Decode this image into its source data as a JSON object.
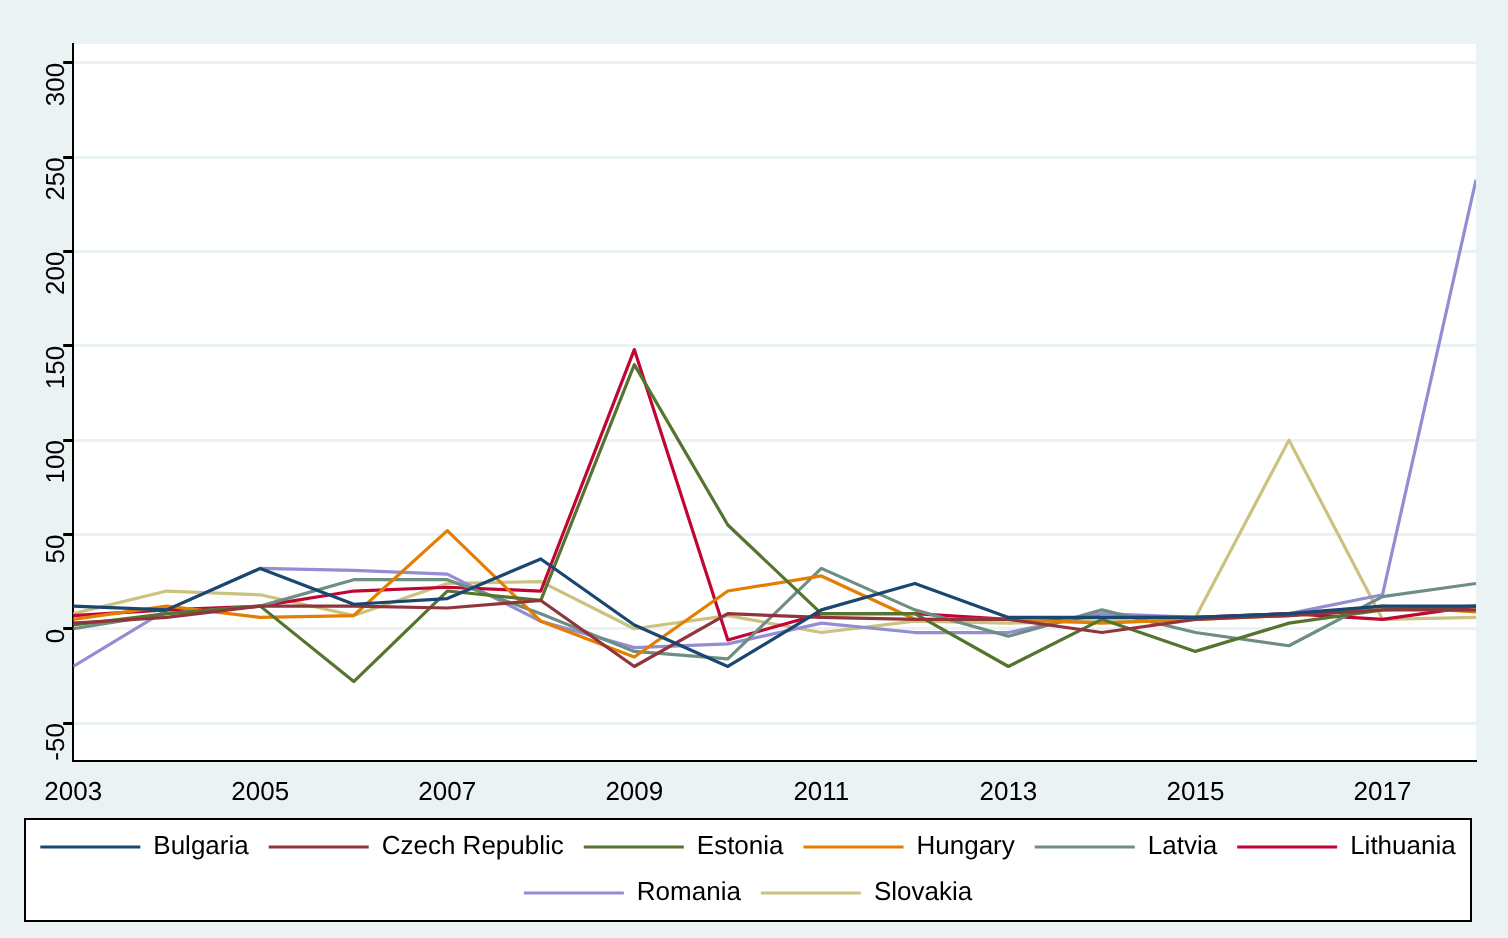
{
  "chart_data": {
    "type": "line",
    "x": [
      2003,
      2004,
      2005,
      2006,
      2007,
      2008,
      2009,
      2010,
      2011,
      2012,
      2013,
      2014,
      2015,
      2016,
      2017,
      2018
    ],
    "xlim": [
      2003,
      2018
    ],
    "xticks": [
      2003,
      2005,
      2007,
      2009,
      2011,
      2013,
      2015,
      2017
    ],
    "ylim": [
      -70,
      310
    ],
    "yticks": [
      -50,
      0,
      50,
      100,
      150,
      200,
      250,
      300
    ],
    "grid": "y",
    "legend": "bottom",
    "marker": "none",
    "line_style": "solid",
    "series": [
      {
        "name": "Bulgaria",
        "color": "#1a476f",
        "values": [
          12,
          10,
          32,
          13,
          16,
          37,
          2,
          -20,
          10,
          24,
          6,
          6,
          6,
          8,
          12,
          12
        ]
      },
      {
        "name": "Czech Republic",
        "color": "#90353b",
        "values": [
          3,
          6,
          12,
          12,
          11,
          15,
          -20,
          8,
          6,
          5,
          5,
          -2,
          5,
          7,
          10,
          10
        ]
      },
      {
        "name": "Estonia",
        "color": "#55752f",
        "values": [
          2,
          8,
          12,
          -28,
          20,
          15,
          140,
          55,
          8,
          8,
          -20,
          5,
          -12,
          3,
          10,
          12
        ]
      },
      {
        "name": "Hungary",
        "color": "#e37e00",
        "values": [
          5,
          12,
          6,
          7,
          52,
          4,
          -15,
          20,
          28,
          5,
          5,
          3,
          5,
          7,
          12,
          9
        ]
      },
      {
        "name": "Latvia",
        "color": "#6e8e84",
        "values": [
          0,
          8,
          12,
          26,
          26,
          8,
          -12,
          -16,
          32,
          10,
          -4,
          10,
          -2,
          -9,
          17,
          24
        ]
      },
      {
        "name": "Lithuania",
        "color": "#c10534",
        "values": [
          7,
          10,
          12,
          20,
          22,
          20,
          148,
          -6,
          8,
          8,
          5,
          6,
          6,
          8,
          5,
          12
        ]
      },
      {
        "name": "Romania",
        "color": "#938dd2",
        "values": [
          -20,
          10,
          32,
          31,
          29,
          4,
          -10,
          -8,
          3,
          -2,
          -2,
          8,
          6,
          8,
          18,
          238
        ]
      },
      {
        "name": "Slovakia",
        "color": "#cac27e",
        "values": [
          8,
          20,
          18,
          7,
          24,
          25,
          0,
          7,
          -2,
          4,
          3,
          4,
          6,
          100,
          5,
          6
        ]
      }
    ]
  }
}
